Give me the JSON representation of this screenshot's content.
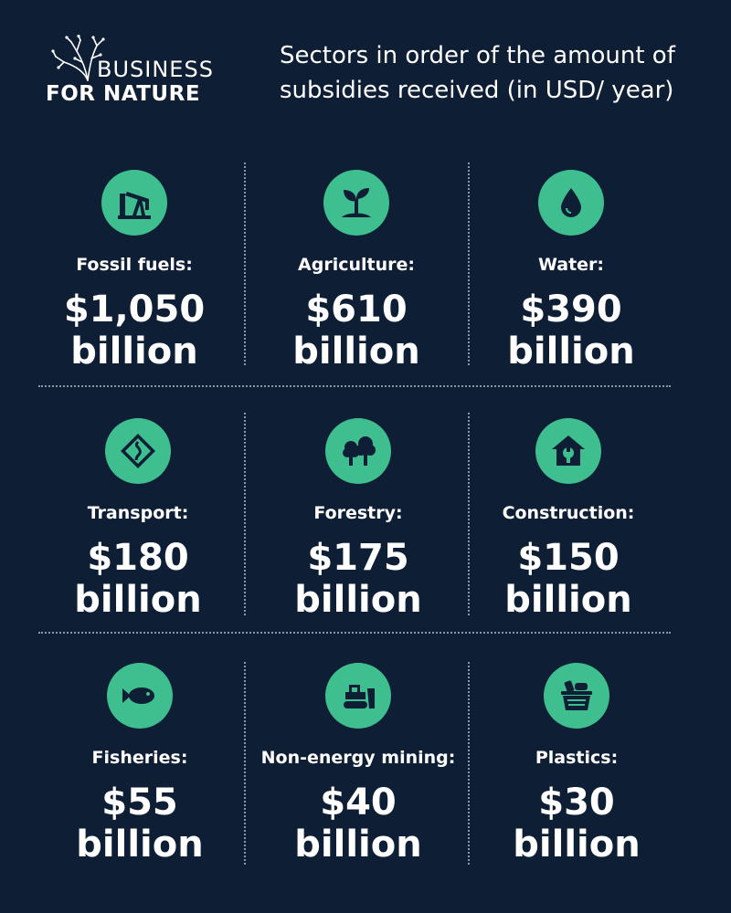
{
  "logo": {
    "line1": "BUSINESS",
    "line2": "FOR NATURE"
  },
  "headline": "Sectors in order of the amount of subsidies received (in USD/ year)",
  "accent_color": "#3fbf90",
  "background_color": "#0e1f35",
  "sectors": [
    {
      "label": "Fossil fuels:",
      "amount": "$1,050",
      "unit": "billion",
      "icon": "oil-pump-icon"
    },
    {
      "label": "Agriculture:",
      "amount": "$610",
      "unit": "billion",
      "icon": "sprout-icon"
    },
    {
      "label": "Water:",
      "amount": "$390",
      "unit": "billion",
      "icon": "water-drop-icon"
    },
    {
      "label": "Transport:",
      "amount": "$180",
      "unit": "billion",
      "icon": "road-sign-icon"
    },
    {
      "label": "Forestry:",
      "amount": "$175",
      "unit": "billion",
      "icon": "trees-icon"
    },
    {
      "label": "Construction:",
      "amount": "$150",
      "unit": "billion",
      "icon": "house-wrench-icon"
    },
    {
      "label": "Fisheries:",
      "amount": "$55",
      "unit": "billion",
      "icon": "fish-icon"
    },
    {
      "label": "Non-energy mining:",
      "amount": "$40",
      "unit": "billion",
      "icon": "bulldozer-icon"
    },
    {
      "label": "Plastics:",
      "amount": "$30",
      "unit": "billion",
      "icon": "plastic-basket-icon"
    }
  ]
}
